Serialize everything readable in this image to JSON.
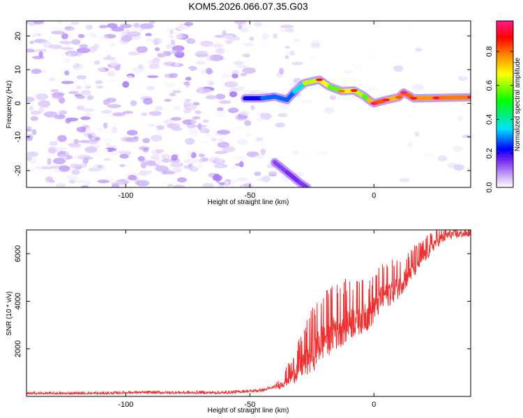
{
  "title": "KOM5.2026.066.07.35.G03",
  "chart_data": [
    {
      "type": "heatmap",
      "name": "spectrogram",
      "xlabel": "Height of straight line (km)",
      "ylabel": "Frequency (Hz)",
      "xlim": [
        -140,
        39
      ],
      "ylim": [
        -25,
        24.5
      ],
      "x_ticks": [
        -100,
        -50,
        0
      ],
      "y_ticks": [
        -20,
        -10,
        0,
        10,
        20
      ],
      "x_tick_labels": [
        "-100",
        "-50",
        "0"
      ],
      "y_tick_labels": [
        "-20",
        "-10",
        "0",
        "10",
        "20"
      ],
      "ridge_path": [
        {
          "x": -52,
          "y": 1.5
        },
        {
          "x": -45,
          "y": 1.5
        },
        {
          "x": -40,
          "y": 2.0
        },
        {
          "x": -35,
          "y": 1.0
        },
        {
          "x": -32,
          "y": 3.5
        },
        {
          "x": -28,
          "y": 6.0
        },
        {
          "x": -22,
          "y": 7.0
        },
        {
          "x": -18,
          "y": 5.0
        },
        {
          "x": -13,
          "y": 3.6
        },
        {
          "x": -8,
          "y": 3.8
        },
        {
          "x": -4,
          "y": 2.2
        },
        {
          "x": -2,
          "y": 1.0
        },
        {
          "x": 0,
          "y": 0.0
        },
        {
          "x": 5,
          "y": 1.0
        },
        {
          "x": 10,
          "y": 1.8
        },
        {
          "x": 12,
          "y": 3.2
        },
        {
          "x": 16,
          "y": 1.5
        },
        {
          "x": 25,
          "y": 1.6
        },
        {
          "x": 39,
          "y": 1.8
        }
      ],
      "ridge_amplitude": [
        0.3,
        0.35,
        0.4,
        0.35,
        0.4,
        0.5,
        0.75,
        0.55,
        0.62,
        0.7,
        0.55,
        0.6,
        0.82,
        0.78,
        0.65,
        0.88,
        0.7,
        0.78,
        0.75
      ],
      "side_branch": [
        {
          "x": -40,
          "y": -17.5
        },
        {
          "x": -35,
          "y": -20.5
        },
        {
          "x": -30,
          "y": -23.5
        },
        {
          "x": -27,
          "y": -25
        }
      ],
      "side_branch_amplitude": [
        0.18,
        0.2,
        0.22,
        0.18
      ],
      "noise_amplitude_range": [
        0.0,
        0.15
      ]
    },
    {
      "type": "colorbar",
      "label": "Normalized spectral amplitude",
      "range": [
        0.0,
        0.98
      ],
      "ticks": [
        0.0,
        0.2,
        0.4,
        0.6,
        0.8
      ],
      "tick_labels": [
        "0.0",
        "0.2",
        "0.4",
        "0.6",
        "0.8"
      ],
      "colormap": [
        "#ffffff",
        "#c8a8f8",
        "#7020f0",
        "#0000ff",
        "#00e0ff",
        "#00ff00",
        "#ffff00",
        "#ff8000",
        "#ff0000",
        "#ff1a8c"
      ]
    },
    {
      "type": "line",
      "name": "snr",
      "xlabel": "Height of straight line (km)",
      "ylabel": "SNR (10 * v/v)",
      "xlim": [
        -140,
        39
      ],
      "ylim": [
        0,
        7000
      ],
      "x_ticks": [
        -100,
        -50,
        0
      ],
      "y_ticks": [
        2000,
        4000,
        6000
      ],
      "x_tick_labels": [
        "-100",
        "-50",
        "0"
      ],
      "y_tick_labels": [
        "2000",
        "4000",
        "6000"
      ],
      "color": "#ee3030",
      "trend": [
        {
          "x": -140,
          "y": 120
        },
        {
          "x": -105,
          "y": 130
        },
        {
          "x": -100,
          "y": 160
        },
        {
          "x": -60,
          "y": 150
        },
        {
          "x": -45,
          "y": 250
        },
        {
          "x": -38,
          "y": 450
        },
        {
          "x": -33,
          "y": 900
        },
        {
          "x": -28,
          "y": 1500
        },
        {
          "x": -22,
          "y": 2300
        },
        {
          "x": -18,
          "y": 2700
        },
        {
          "x": -12,
          "y": 3100
        },
        {
          "x": -8,
          "y": 3300
        },
        {
          "x": -2,
          "y": 3500
        },
        {
          "x": 3,
          "y": 4200
        },
        {
          "x": 10,
          "y": 4700
        },
        {
          "x": 15,
          "y": 5300
        },
        {
          "x": 20,
          "y": 5900
        },
        {
          "x": 25,
          "y": 6500
        },
        {
          "x": 30,
          "y": 6800
        },
        {
          "x": 39,
          "y": 6850
        }
      ],
      "noise_amplitude": [
        {
          "x": -140,
          "y": 60
        },
        {
          "x": -40,
          "y": 80
        },
        {
          "x": -33,
          "y": 700
        },
        {
          "x": -25,
          "y": 1700
        },
        {
          "x": -15,
          "y": 1800
        },
        {
          "x": -5,
          "y": 1400
        },
        {
          "x": 5,
          "y": 1200
        },
        {
          "x": 15,
          "y": 900
        },
        {
          "x": 25,
          "y": 500
        },
        {
          "x": 39,
          "y": 250
        }
      ]
    }
  ]
}
